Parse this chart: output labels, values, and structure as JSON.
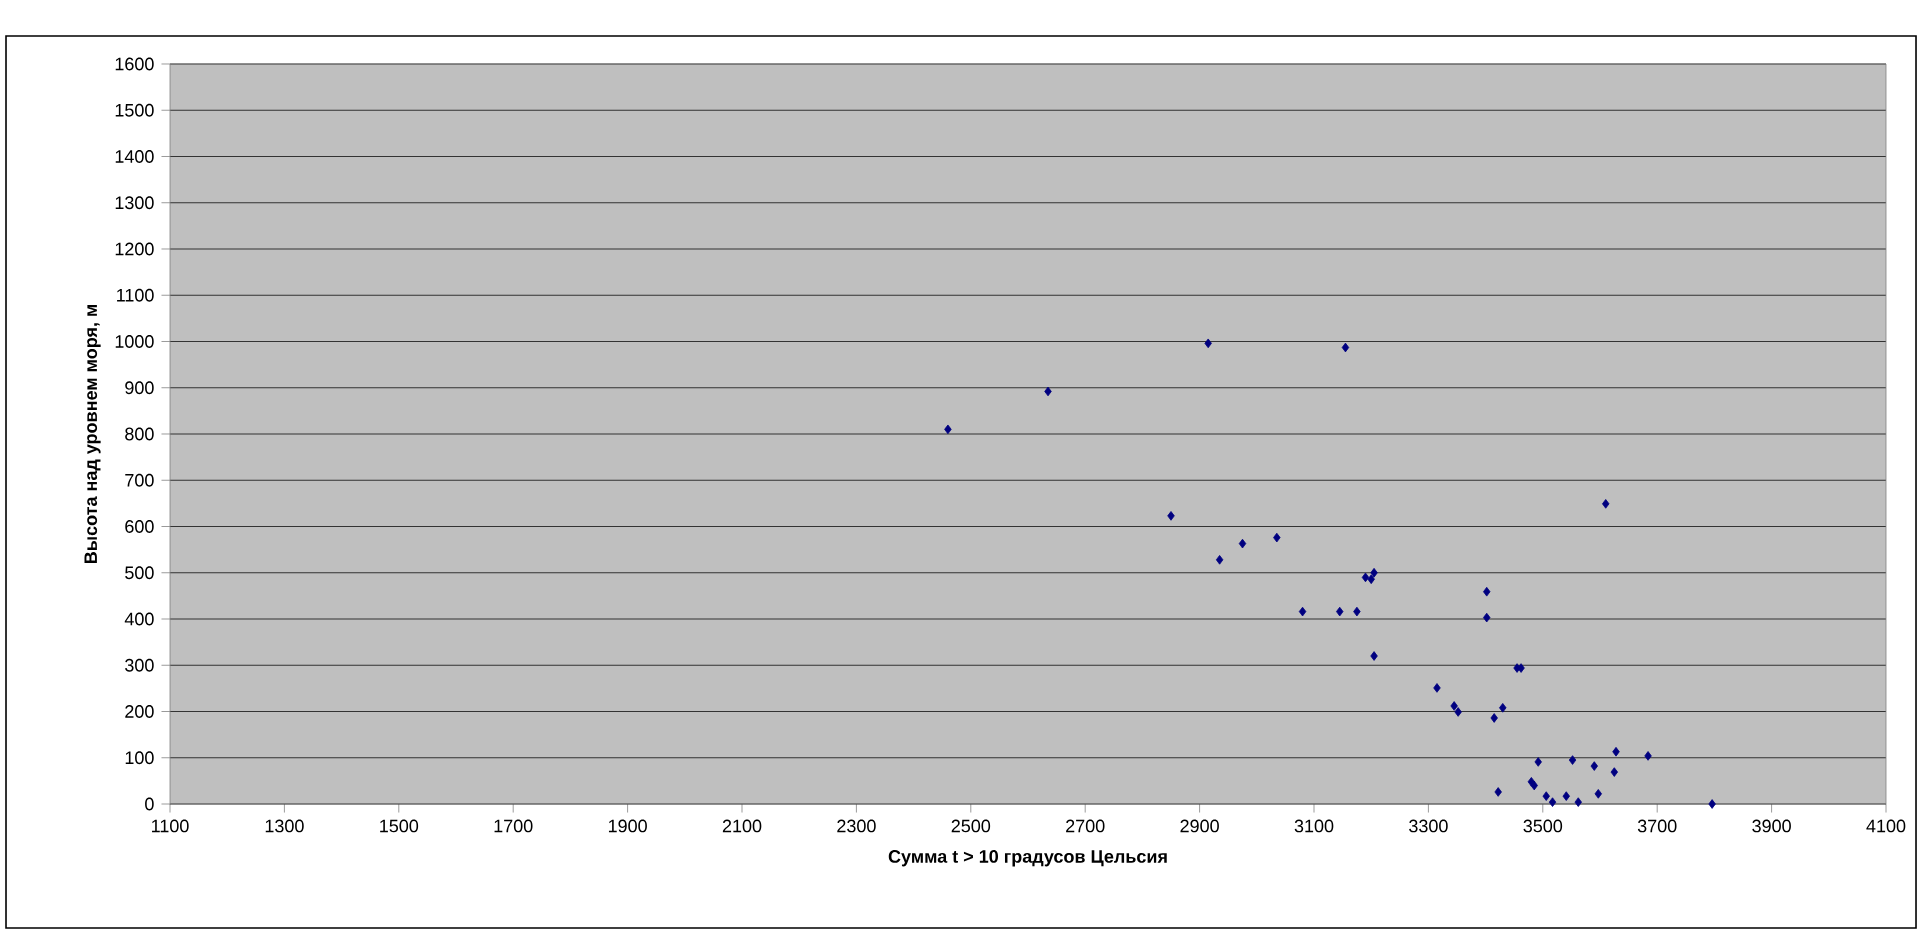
{
  "chart_data": {
    "type": "scatter",
    "xlabel": "Сумма t > 10 градусов Цельсия",
    "ylabel": "Высота над уровнем моря, м",
    "xlim": [
      1100,
      4100
    ],
    "xticks": [
      1100,
      1300,
      1500,
      1700,
      1900,
      2100,
      2300,
      2500,
      2700,
      2900,
      3100,
      3300,
      3500,
      3700,
      3900,
      4100
    ],
    "ylim": [
      0,
      1600
    ],
    "yticks": [
      0,
      100,
      200,
      300,
      400,
      500,
      600,
      700,
      800,
      900,
      1000,
      1100,
      1200,
      1300,
      1400,
      1500,
      1600
    ],
    "grid": "y",
    "marker": "diamond",
    "series": [
      {
        "color": "#000080",
        "x": [
          2460,
          2635,
          2915,
          3155,
          2850,
          2935,
          2975,
          3035,
          3080,
          3145,
          3175,
          3190,
          3200,
          3205,
          3205,
          3610,
          3315,
          3345,
          3352,
          3402,
          3402,
          3415,
          3430,
          3455,
          3462,
          3422,
          3480,
          3485,
          3492,
          3506,
          3517,
          3541,
          3552,
          3562,
          3590,
          3597,
          3625,
          3628,
          3684,
          3796
        ],
        "values": [
          810,
          892,
          996,
          987,
          623,
          528,
          563,
          576,
          416,
          416,
          416,
          490,
          486,
          500,
          320,
          649,
          251,
          212,
          199,
          459,
          403,
          186,
          208,
          294,
          294,
          26,
          48,
          40,
          91,
          17,
          4,
          17,
          95,
          4,
          82,
          22,
          69,
          113,
          104,
          0
        ]
      }
    ]
  }
}
